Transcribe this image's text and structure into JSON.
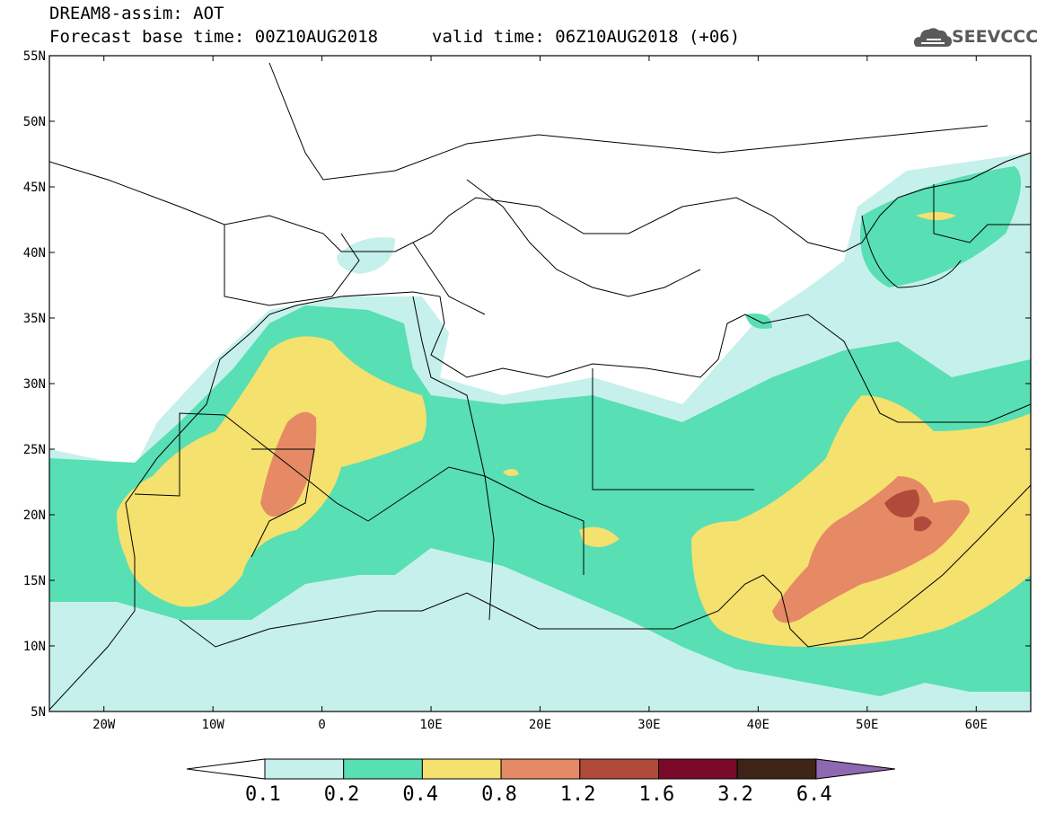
{
  "header": {
    "line1": "DREAM8-assim: AOT",
    "base_time": "Forecast base time: 00Z10AUG2018",
    "valid_time": "valid time: 06Z10AUG2018 (+06)",
    "logo_text": "SEEVCCC",
    "logo_icon": "cloud-logo-icon"
  },
  "map": {
    "lon_range": [
      -25,
      65
    ],
    "lat_range": [
      5,
      55
    ],
    "lat_labels": [
      "55N",
      "50N",
      "45N",
      "40N",
      "35N",
      "30N",
      "25N",
      "20N",
      "15N",
      "10N",
      "5N"
    ],
    "lat_values": [
      55,
      50,
      45,
      40,
      35,
      30,
      25,
      20,
      15,
      10,
      5
    ],
    "lon_labels": [
      "20W",
      "10W",
      "0",
      "10E",
      "20E",
      "30E",
      "40E",
      "50E",
      "60E"
    ],
    "lon_values": [
      -20,
      -10,
      0,
      10,
      20,
      30,
      40,
      50,
      60
    ]
  },
  "colorbar": {
    "levels": [
      "0.1",
      "0.2",
      "0.4",
      "0.8",
      "1.2",
      "1.6",
      "3.2",
      "6.4"
    ],
    "colors": [
      "#ffffff",
      "#c6f0eb",
      "#58dfb4",
      "#f5e16e",
      "#e58a64",
      "#b04a3a",
      "#7a0a2a",
      "#3e2416",
      "#8e68b0"
    ]
  },
  "colors": {
    "c1": "#c6f0eb",
    "c2": "#58dfb4",
    "c3": "#f5e16e",
    "c4": "#e58a64",
    "c5": "#b04a3a"
  }
}
